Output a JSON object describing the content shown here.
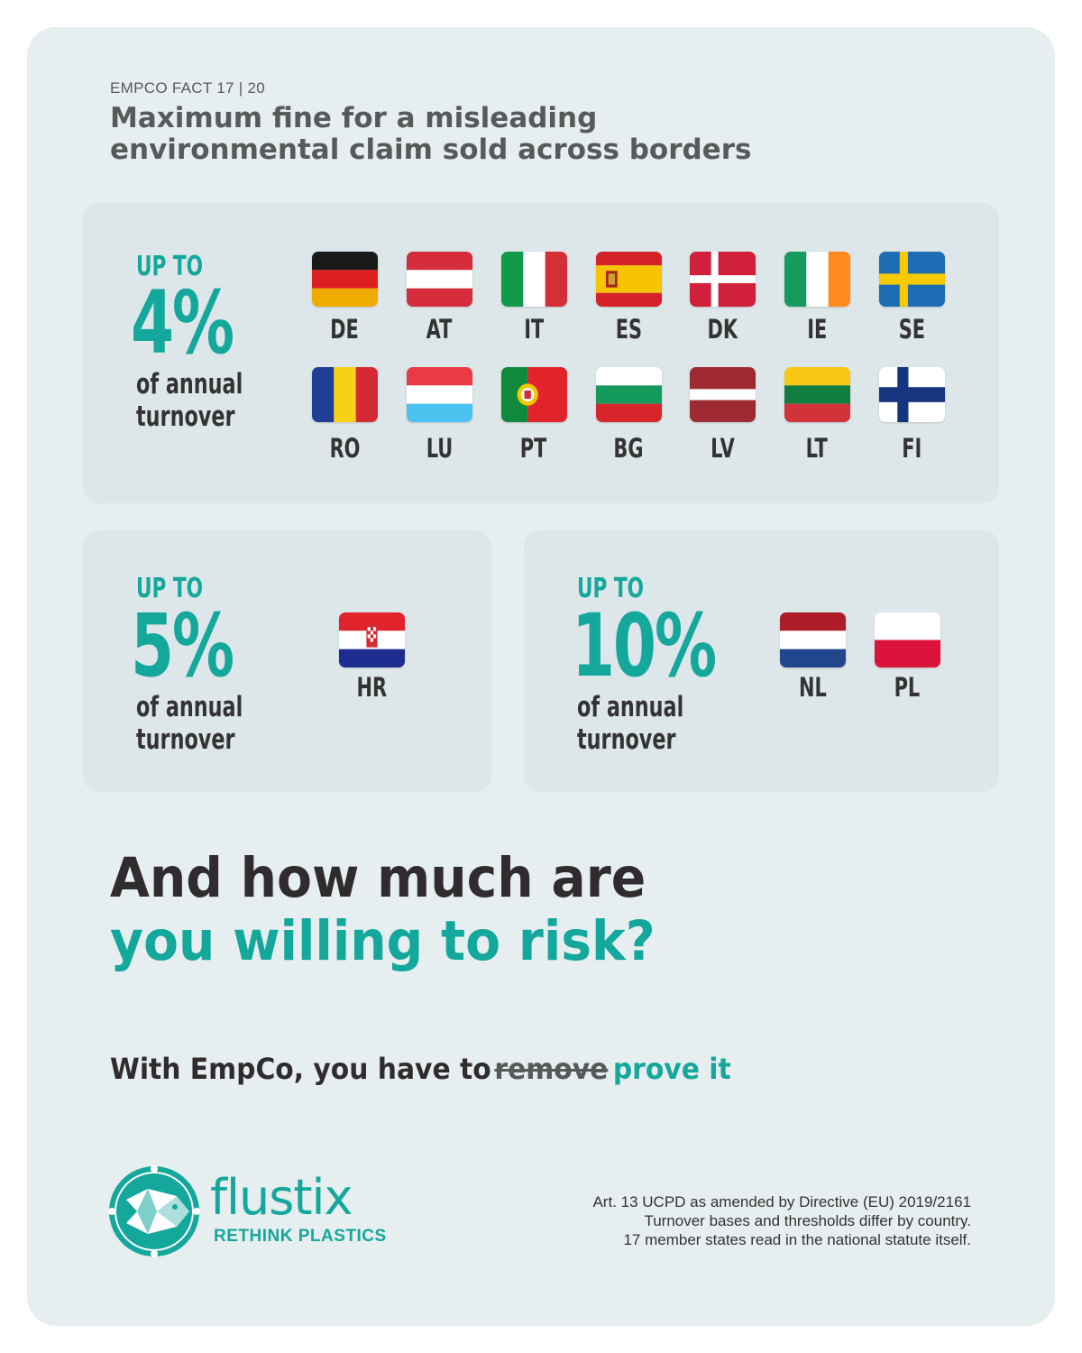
{
  "header": {
    "eyebrow": "EMPCO FACT 17 | 20",
    "title_line1": "Maximum fine for a misleading",
    "title_line2": "environmental claim sold across borders"
  },
  "tiers": [
    {
      "up_to": "UP TO",
      "percent": "4%",
      "turnover_line1": "of annual",
      "turnover_line2": "turnover",
      "countries": [
        "DE",
        "AT",
        "IT",
        "ES",
        "DK",
        "IE",
        "SE",
        "RO",
        "LU",
        "PT",
        "BG",
        "LV",
        "LT",
        "FI"
      ]
    },
    {
      "up_to": "UP TO",
      "percent": "5%",
      "turnover_line1": "of annual",
      "turnover_line2": "turnover",
      "countries": [
        "HR"
      ]
    },
    {
      "up_to": "UP TO",
      "percent": "10%",
      "turnover_line1": "of annual",
      "turnover_line2": "turnover",
      "countries": [
        "NL",
        "PL"
      ]
    }
  ],
  "question": {
    "line1": "And how much are",
    "line2": "you willing to risk?"
  },
  "tagline": {
    "prefix": "With EmpCo, you have to",
    "struck": "remove",
    "accent": "prove it"
  },
  "brand": {
    "name": "flustix",
    "subtitle": "RETHINK PLASTICS"
  },
  "notes": [
    "Art. 13 UCPD as amended by Directive (EU) 2019/2161",
    "Turnover bases and thresholds differ by country.",
    "17 member states read in the national statute itself."
  ],
  "colors": {
    "accent": "#14a79c",
    "card_background": "#e6eeef",
    "panel_background": "#dde6e8",
    "text_dark": "#2f2b2e",
    "text_grey": "#58595b"
  }
}
